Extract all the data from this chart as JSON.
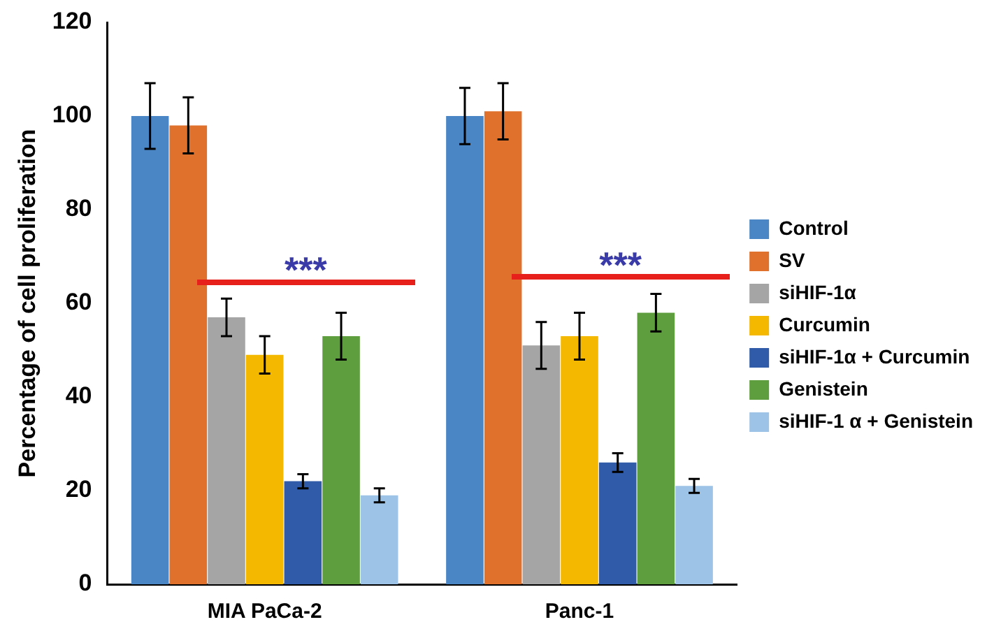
{
  "chart_data": {
    "type": "bar",
    "ylabel": "Percentage of cell proliferation",
    "categories": [
      "MIA PaCa-2",
      "Panc-1"
    ],
    "series": [
      {
        "name": "Control",
        "color": "#4a86c5",
        "values": [
          100,
          100
        ],
        "errors": [
          7,
          6
        ]
      },
      {
        "name": "SV",
        "color": "#e0712c",
        "values": [
          98,
          101
        ],
        "errors": [
          6,
          6
        ]
      },
      {
        "name": "siHIF-1α",
        "color": "#a5a5a5",
        "values": [
          57,
          51
        ],
        "errors": [
          4,
          5
        ]
      },
      {
        "name": "Curcumin",
        "color": "#f4b800",
        "values": [
          49,
          53
        ],
        "errors": [
          4,
          5
        ]
      },
      {
        "name": "siHIF-1α + Curcumin",
        "color": "#2f5ba8",
        "values": [
          22,
          26
        ],
        "errors": [
          1.5,
          2
        ]
      },
      {
        "name": "Genistein",
        "color": "#5f9e3e",
        "values": [
          53,
          58
        ],
        "errors": [
          5,
          4
        ]
      },
      {
        "name": "siHIF-1 α + Genistein",
        "color": "#9dc3e6",
        "values": [
          19,
          21
        ],
        "errors": [
          1.5,
          1.5
        ]
      }
    ],
    "ylim": [
      0,
      120
    ],
    "yticks": [
      0,
      20,
      40,
      60,
      80,
      100,
      120
    ],
    "grid": false,
    "legend": "right",
    "annotations": [
      "***",
      "***"
    ]
  }
}
